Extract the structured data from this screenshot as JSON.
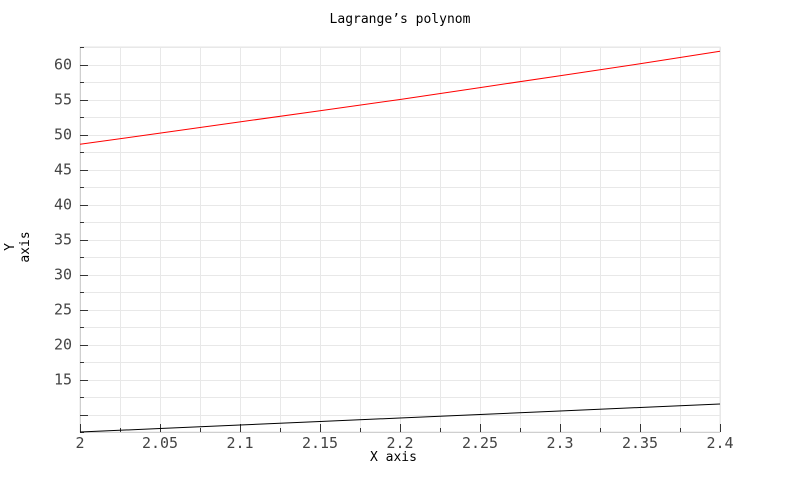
{
  "chart_data": {
    "type": "line",
    "title": "Lagrange’s polynom",
    "xlabel": "X axis",
    "ylabel": "Y axis",
    "xlim": [
      2,
      2.4
    ],
    "ylim": [
      7.5,
      62.5
    ],
    "x_ticks": [
      "2",
      "2.05",
      "2.1",
      "2.15",
      "2.2",
      "2.25",
      "2.3",
      "2.35",
      "2.4"
    ],
    "y_ticks": [
      "15",
      "20",
      "25",
      "30",
      "35",
      "40",
      "45",
      "50",
      "55",
      "60"
    ],
    "grid": true,
    "series": [
      {
        "color": "#ff0000",
        "x": [
          2,
          2.05,
          2.1,
          2.15,
          2.2,
          2.25,
          2.3,
          2.35,
          2.4
        ],
        "y": [
          48.6,
          50.2,
          51.8,
          53.4,
          55.0,
          56.7,
          58.4,
          60.1,
          61.9
        ]
      },
      {
        "color": "#000000",
        "x": [
          2,
          2.05,
          2.1,
          2.15,
          2.2,
          2.25,
          2.3,
          2.35,
          2.4
        ],
        "y": [
          7.5,
          8.0,
          8.5,
          9.0,
          9.5,
          10.0,
          10.5,
          11.0,
          11.5
        ]
      }
    ]
  }
}
